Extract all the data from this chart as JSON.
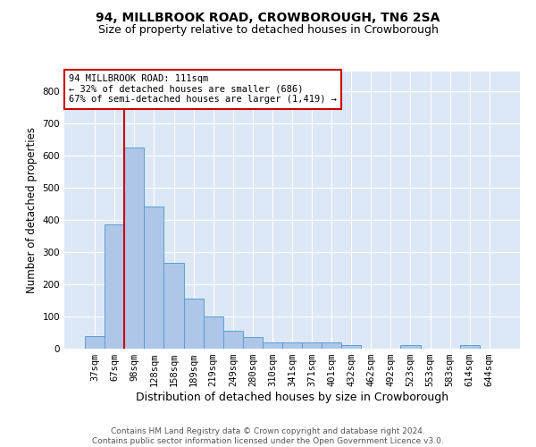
{
  "title": "94, MILLBROOK ROAD, CROWBOROUGH, TN6 2SA",
  "subtitle": "Size of property relative to detached houses in Crowborough",
  "xlabel": "Distribution of detached houses by size in Crowborough",
  "ylabel": "Number of detached properties",
  "footer_line1": "Contains HM Land Registry data © Crown copyright and database right 2024.",
  "footer_line2": "Contains public sector information licensed under the Open Government Licence v3.0.",
  "bar_labels": [
    "37sqm",
    "67sqm",
    "98sqm",
    "128sqm",
    "158sqm",
    "189sqm",
    "219sqm",
    "249sqm",
    "280sqm",
    "310sqm",
    "341sqm",
    "371sqm",
    "401sqm",
    "432sqm",
    "462sqm",
    "492sqm",
    "523sqm",
    "553sqm",
    "583sqm",
    "614sqm",
    "644sqm"
  ],
  "bar_values": [
    40,
    385,
    625,
    440,
    265,
    155,
    100,
    55,
    35,
    20,
    20,
    20,
    20,
    10,
    0,
    0,
    10,
    0,
    0,
    10,
    0
  ],
  "bar_color": "#aec6e8",
  "bar_edge_color": "#5a9fd4",
  "background_color": "#dce8f5",
  "annotation_text": "94 MILLBROOK ROAD: 111sqm\n← 32% of detached houses are smaller (686)\n67% of semi-detached houses are larger (1,419) →",
  "vline_color": "#cc0000",
  "annotation_box_color": "#ffffff",
  "annotation_box_edge": "#cc0000",
  "ylim": [
    0,
    860
  ],
  "yticks": [
    0,
    100,
    200,
    300,
    400,
    500,
    600,
    700,
    800
  ],
  "title_fontsize": 10,
  "subtitle_fontsize": 9,
  "xlabel_fontsize": 9,
  "ylabel_fontsize": 8.5,
  "tick_fontsize": 7.5,
  "annotation_fontsize": 7.5,
  "footer_fontsize": 6.5
}
